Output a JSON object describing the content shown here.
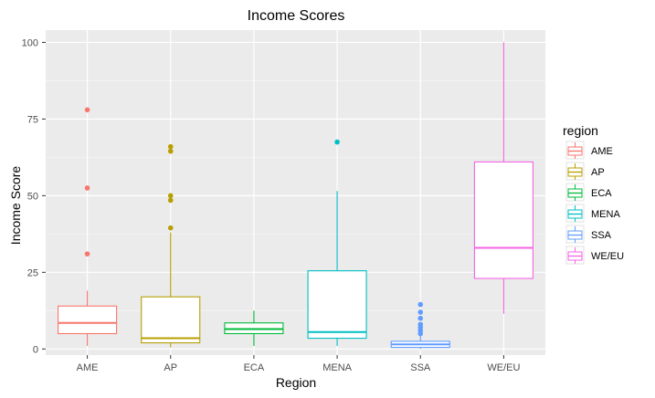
{
  "chart_data": {
    "type": "boxplot",
    "title": "Income Scores",
    "xlabel": "Region",
    "ylabel": "Income Score",
    "categories": [
      "AME",
      "AP",
      "ECA",
      "MENA",
      "SSA",
      "WE/EU"
    ],
    "ylim": [
      -2,
      104
    ],
    "yticks": [
      0,
      25,
      50,
      75,
      100
    ],
    "grid": true,
    "background": "#ebebeb",
    "legend": {
      "title": "region",
      "position": "right",
      "entries": [
        "AME",
        "AP",
        "ECA",
        "MENA",
        "SSA",
        "WE/EU"
      ]
    },
    "series": [
      {
        "name": "AME",
        "color": "#F8766D",
        "whisker_low": 1,
        "q1": 5,
        "median": 8.5,
        "q3": 14,
        "whisker_high": 19,
        "outliers": [
          31,
          52.5,
          78
        ]
      },
      {
        "name": "AP",
        "color": "#B79F00",
        "whisker_low": 0.5,
        "q1": 2,
        "median": 3.5,
        "q3": 17,
        "whisker_high": 38,
        "outliers": [
          39.5,
          48.5,
          50,
          64.5,
          66
        ]
      },
      {
        "name": "ECA",
        "color": "#00BA38",
        "whisker_low": 1,
        "q1": 5,
        "median": 6.5,
        "q3": 8.5,
        "whisker_high": 12.5,
        "outliers": []
      },
      {
        "name": "MENA",
        "color": "#00BFC4",
        "whisker_low": 1,
        "q1": 3.5,
        "median": 5.5,
        "q3": 25.5,
        "whisker_high": 51.5,
        "outliers": [
          67.5
        ]
      },
      {
        "name": "SSA",
        "color": "#619CFF",
        "whisker_low": 0,
        "q1": 0.5,
        "median": 1.5,
        "q3": 2.5,
        "whisker_high": 4.5,
        "outliers": [
          5,
          6,
          7,
          8,
          10,
          12,
          14.5
        ]
      },
      {
        "name": "WE/EU",
        "color": "#F564E3",
        "whisker_low": 11.5,
        "q1": 23,
        "median": 33,
        "q3": 61,
        "whisker_high": 100,
        "outliers": []
      }
    ]
  }
}
